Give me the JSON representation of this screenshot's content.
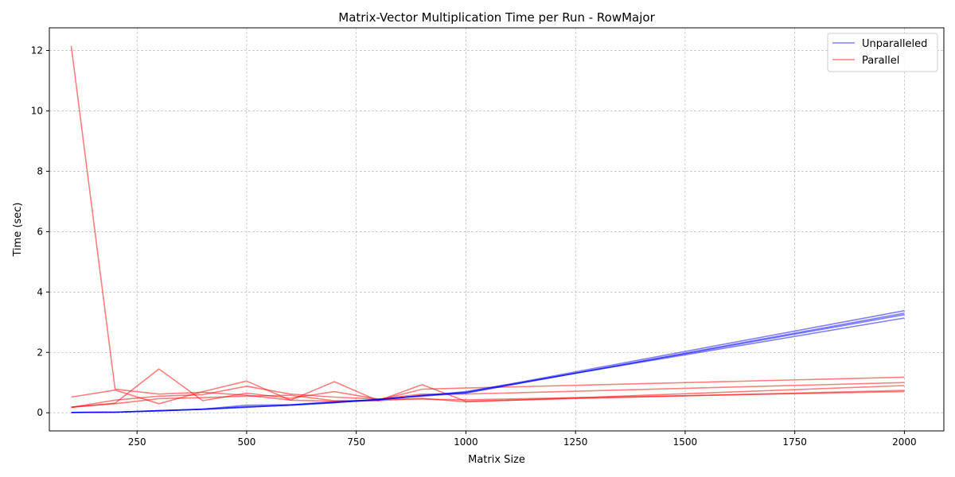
{
  "chart_data": {
    "type": "line",
    "title": "Matrix-Vector Multiplication Time per Run - RowMajor",
    "xlabel": "Matrix Size",
    "ylabel": "Time (sec)",
    "xlim": [
      50,
      2090
    ],
    "ylim": [
      -0.6,
      12.75
    ],
    "xticks": [
      250,
      500,
      750,
      1000,
      1250,
      1500,
      1750,
      2000
    ],
    "yticks": [
      0,
      2,
      4,
      6,
      8,
      10,
      12
    ],
    "grid": true,
    "legend_position": "top-right",
    "x": [
      100,
      200,
      300,
      400,
      500,
      600,
      700,
      800,
      900,
      1000,
      2000
    ],
    "colors": {
      "Unparalleled": "#0000ff",
      "Parallel": "#ff0000"
    },
    "legend": [
      {
        "name": "Unparalleled",
        "color": "#0000ff"
      },
      {
        "name": "Parallel",
        "color": "#ff0000"
      }
    ],
    "series": [
      {
        "name": "Unparalleled",
        "values": [
          0.01,
          0.02,
          0.07,
          0.12,
          0.2,
          0.25,
          0.33,
          0.45,
          0.55,
          0.65,
          3.3
        ]
      },
      {
        "name": "Unparalleled",
        "values": [
          0.01,
          0.02,
          0.07,
          0.11,
          0.18,
          0.26,
          0.35,
          0.42,
          0.58,
          0.68,
          3.38
        ]
      },
      {
        "name": "Unparalleled",
        "values": [
          0.01,
          0.02,
          0.06,
          0.12,
          0.25,
          0.27,
          0.36,
          0.44,
          0.56,
          0.7,
          3.14
        ]
      },
      {
        "name": "Unparalleled",
        "values": [
          0.01,
          0.02,
          0.07,
          0.12,
          0.19,
          0.25,
          0.34,
          0.43,
          0.57,
          0.66,
          3.25
        ]
      },
      {
        "name": "Parallel",
        "values": [
          12.15,
          0.78,
          0.62,
          0.68,
          0.58,
          0.42,
          0.38,
          0.42,
          0.78,
          0.82,
          1.18
        ]
      },
      {
        "name": "Parallel",
        "values": [
          0.52,
          0.75,
          0.3,
          0.7,
          1.05,
          0.42,
          1.03,
          0.4,
          0.93,
          0.38,
          0.74
        ]
      },
      {
        "name": "Parallel",
        "values": [
          0.18,
          0.32,
          1.45,
          0.4,
          0.65,
          0.48,
          0.7,
          0.45,
          0.45,
          0.43,
          0.7
        ]
      },
      {
        "name": "Parallel",
        "values": [
          0.18,
          0.42,
          0.55,
          0.6,
          0.88,
          0.62,
          0.52,
          0.45,
          0.62,
          0.62,
          1.0
        ]
      },
      {
        "name": "Parallel",
        "values": [
          0.19,
          0.3,
          0.47,
          0.5,
          0.55,
          0.58,
          0.4,
          0.4,
          0.48,
          0.36,
          0.9
        ]
      }
    ]
  }
}
